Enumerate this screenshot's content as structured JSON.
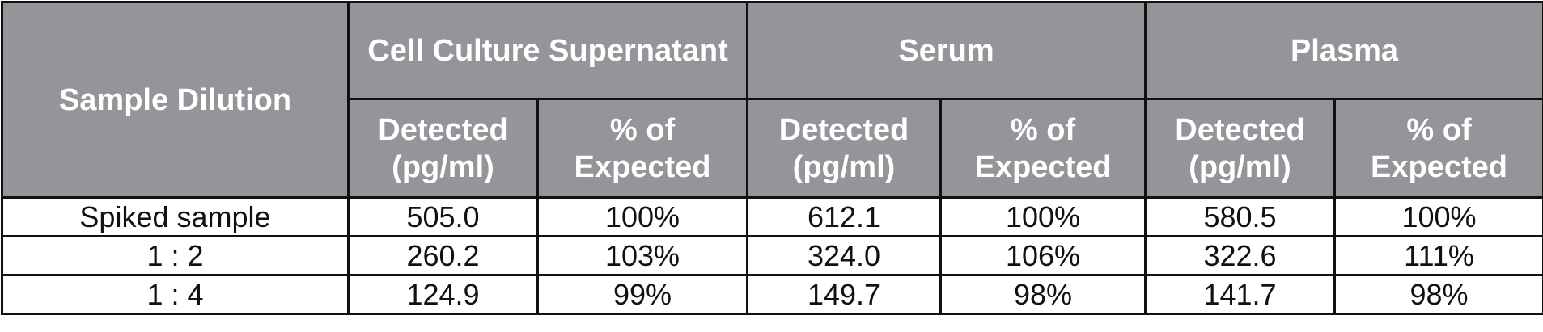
{
  "table": {
    "header": {
      "corner": "Sample Dilution",
      "groups": [
        "Cell Culture Supernatant",
        "Serum",
        "Plasma"
      ],
      "subheaders": [
        "Detected (pg/ml)",
        "% of Expected",
        "Detected (pg/ml)",
        "% of Expected",
        "Detected (pg/ml)",
        "% of Expected"
      ]
    },
    "rows": [
      [
        "Spiked sample",
        "505.0",
        "100%",
        "612.1",
        "100%",
        "580.5",
        "100%"
      ],
      [
        "1 : 2",
        "260.2",
        "103%",
        "324.0",
        "106%",
        "322.6",
        "111%"
      ],
      [
        "1 : 4",
        "124.9",
        "99%",
        "149.7",
        "98%",
        "141.7",
        "98%"
      ]
    ]
  }
}
